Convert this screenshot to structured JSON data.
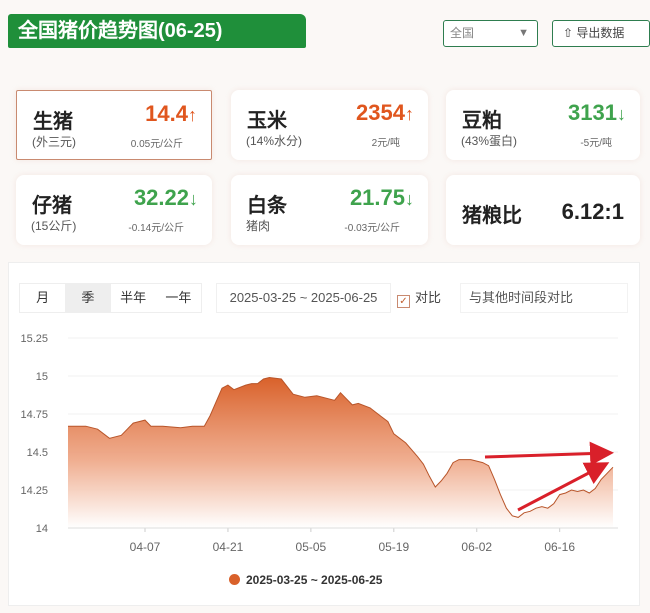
{
  "header": {
    "title": "全国猪价趋势图(06-25)",
    "region_select": "全国",
    "export_label": "导出数据"
  },
  "cards": [
    {
      "name": "生猪",
      "sub": "(外三元)",
      "value": "14.4",
      "change": "0.05元/公斤",
      "trend": "up"
    },
    {
      "name": "玉米",
      "sub": "(14%水分)",
      "value": "2354",
      "change": "2元/吨",
      "trend": "up"
    },
    {
      "name": "豆粕",
      "sub": "(43%蛋白)",
      "value": "3131",
      "change": "-5元/吨",
      "trend": "down"
    },
    {
      "name": "仔猪",
      "sub": "(15公斤)",
      "value": "32.22",
      "change": "-0.14元/公斤",
      "trend": "down"
    },
    {
      "name": "白条",
      "sub": "猪肉",
      "value": "21.75",
      "change": "-0.03元/公斤",
      "trend": "down"
    },
    {
      "name": "猪粮比",
      "sub": "",
      "value": "6.12:1",
      "change": "",
      "trend": "none"
    }
  ],
  "controls": {
    "periods": [
      "月",
      "季",
      "半年",
      "一年"
    ],
    "active_period": "季",
    "range": "2025-03-25 ~ 2025-06-25",
    "compare_label": "对比",
    "compare_checked": true,
    "compare_placeholder": "与其他时间段对比"
  },
  "colors": {
    "up": "#e0561e",
    "down": "#3fa34d",
    "brand": "#1f8f3a",
    "series": "#d9612a",
    "annotation": "#d9202a"
  },
  "chart_data": {
    "type": "area",
    "ylim": [
      14,
      15.25
    ],
    "yticks": [
      "15.25",
      "15",
      "14.75",
      "14.5",
      "14.25",
      "14"
    ],
    "xticks": [
      "04-07",
      "04-21",
      "05-05",
      "05-19",
      "06-02",
      "06-16"
    ],
    "xlim": [
      "2025-03-25",
      "2025-06-25"
    ],
    "grid": true,
    "legend": "bottom",
    "series": [
      {
        "name": "2025-03-25 ~ 2025-06-25",
        "x": [
          "03-25",
          "03-28",
          "03-30",
          "04-01",
          "04-03",
          "04-05",
          "04-07",
          "04-08",
          "04-10",
          "04-13",
          "04-15",
          "04-17",
          "04-18",
          "04-20",
          "04-21",
          "04-22",
          "04-24",
          "04-25",
          "04-26",
          "04-27",
          "04-28",
          "04-30",
          "05-01",
          "05-02",
          "05-04",
          "05-06",
          "05-08",
          "05-09",
          "05-10",
          "05-11",
          "05-12",
          "05-13",
          "05-15",
          "05-16",
          "05-18",
          "05-19",
          "05-20",
          "05-21",
          "05-23",
          "05-24",
          "05-25",
          "05-26",
          "05-27",
          "05-28",
          "05-29",
          "05-30",
          "06-01",
          "06-03",
          "06-04",
          "06-05",
          "06-06",
          "06-07",
          "06-08",
          "06-09",
          "06-10",
          "06-11",
          "06-12",
          "06-13",
          "06-14",
          "06-15",
          "06-16",
          "06-17",
          "06-18",
          "06-19",
          "06-20",
          "06-21",
          "06-22",
          "06-23",
          "06-24",
          "06-25"
        ],
        "values": [
          14.67,
          14.67,
          14.65,
          14.59,
          14.61,
          14.69,
          14.71,
          14.67,
          14.67,
          14.66,
          14.67,
          14.67,
          14.74,
          14.92,
          14.94,
          14.91,
          14.94,
          14.95,
          14.95,
          14.98,
          14.99,
          14.98,
          14.93,
          14.88,
          14.86,
          14.87,
          14.85,
          14.84,
          14.89,
          14.85,
          14.81,
          14.82,
          14.79,
          14.76,
          14.7,
          14.62,
          14.59,
          14.56,
          14.47,
          14.42,
          14.34,
          14.27,
          14.31,
          14.36,
          14.43,
          14.45,
          14.45,
          14.43,
          14.41,
          14.32,
          14.22,
          14.13,
          14.08,
          14.07,
          14.1,
          14.11,
          14.13,
          14.14,
          14.13,
          14.16,
          14.22,
          14.23,
          14.25,
          14.24,
          14.25,
          14.23,
          14.26,
          14.32,
          14.36,
          14.4
        ]
      }
    ]
  }
}
